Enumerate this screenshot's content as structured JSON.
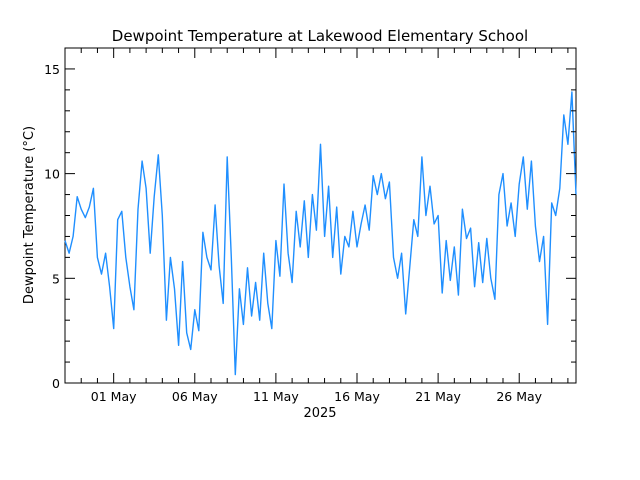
{
  "chart_data": {
    "type": "line",
    "title": "Dewpoint Temperature at Lakewood Elementary School",
    "ylabel": "Dewpoint Temperature (°C)",
    "xlabel": "2025",
    "ylim": [
      0,
      16
    ],
    "y_ticks": [
      0,
      5,
      10,
      15
    ],
    "y_minor_step": 1,
    "xlim": [
      "2025-04-28",
      "2025-05-29T12:00"
    ],
    "x_ticks": [
      {
        "date": "2025-05-01",
        "label": "01 May"
      },
      {
        "date": "2025-05-06",
        "label": "06 May"
      },
      {
        "date": "2025-05-11",
        "label": "11 May"
      },
      {
        "date": "2025-05-16",
        "label": "16 May"
      },
      {
        "date": "2025-05-21",
        "label": "21 May"
      },
      {
        "date": "2025-05-26",
        "label": "26 May"
      }
    ],
    "grid": false,
    "series": [
      {
        "color": "#1f8fff",
        "points": [
          [
            "2025-04-28T00:00",
            6.8
          ],
          [
            "2025-04-28T06:00",
            6.2
          ],
          [
            "2025-04-28T12:00",
            7.0
          ],
          [
            "2025-04-28T18:00",
            8.9
          ],
          [
            "2025-04-29T00:00",
            8.3
          ],
          [
            "2025-04-29T06:00",
            7.9
          ],
          [
            "2025-04-29T12:00",
            8.4
          ],
          [
            "2025-04-29T18:00",
            9.3
          ],
          [
            "2025-04-30T00:00",
            6.0
          ],
          [
            "2025-04-30T06:00",
            5.2
          ],
          [
            "2025-04-30T12:00",
            6.2
          ],
          [
            "2025-04-30T18:00",
            4.6
          ],
          [
            "2025-05-01T00:00",
            2.6
          ],
          [
            "2025-05-01T06:00",
            7.8
          ],
          [
            "2025-05-01T12:00",
            8.2
          ],
          [
            "2025-05-01T18:00",
            6.0
          ],
          [
            "2025-05-02T00:00",
            4.6
          ],
          [
            "2025-05-02T06:00",
            3.5
          ],
          [
            "2025-05-02T12:00",
            8.3
          ],
          [
            "2025-05-02T18:00",
            10.6
          ],
          [
            "2025-05-03T00:00",
            9.3
          ],
          [
            "2025-05-03T06:00",
            6.2
          ],
          [
            "2025-05-03T12:00",
            8.9
          ],
          [
            "2025-05-03T18:00",
            10.9
          ],
          [
            "2025-05-04T00:00",
            8.0
          ],
          [
            "2025-05-04T06:00",
            3.0
          ],
          [
            "2025-05-04T12:00",
            6.0
          ],
          [
            "2025-05-04T18:00",
            4.5
          ],
          [
            "2025-05-05T00:00",
            1.8
          ],
          [
            "2025-05-05T06:00",
            5.8
          ],
          [
            "2025-05-05T12:00",
            2.4
          ],
          [
            "2025-05-05T18:00",
            1.6
          ],
          [
            "2025-05-06T00:00",
            3.5
          ],
          [
            "2025-05-06T06:00",
            2.5
          ],
          [
            "2025-05-06T12:00",
            7.2
          ],
          [
            "2025-05-06T18:00",
            6.0
          ],
          [
            "2025-05-07T00:00",
            5.4
          ],
          [
            "2025-05-07T06:00",
            8.5
          ],
          [
            "2025-05-07T12:00",
            5.6
          ],
          [
            "2025-05-07T18:00",
            3.8
          ],
          [
            "2025-05-08T00:00",
            10.8
          ],
          [
            "2025-05-08T06:00",
            6.0
          ],
          [
            "2025-05-08T12:00",
            0.4
          ],
          [
            "2025-05-08T18:00",
            4.5
          ],
          [
            "2025-05-09T00:00",
            2.8
          ],
          [
            "2025-05-09T06:00",
            5.5
          ],
          [
            "2025-05-09T12:00",
            3.2
          ],
          [
            "2025-05-09T18:00",
            4.8
          ],
          [
            "2025-05-10T00:00",
            3.0
          ],
          [
            "2025-05-10T06:00",
            6.2
          ],
          [
            "2025-05-10T12:00",
            3.8
          ],
          [
            "2025-05-10T18:00",
            2.6
          ],
          [
            "2025-05-11T00:00",
            6.8
          ],
          [
            "2025-05-11T06:00",
            5.1
          ],
          [
            "2025-05-11T12:00",
            9.5
          ],
          [
            "2025-05-11T18:00",
            6.2
          ],
          [
            "2025-05-12T00:00",
            4.8
          ],
          [
            "2025-05-12T06:00",
            8.2
          ],
          [
            "2025-05-12T12:00",
            6.5
          ],
          [
            "2025-05-12T18:00",
            8.7
          ],
          [
            "2025-05-13T00:00",
            6.0
          ],
          [
            "2025-05-13T06:00",
            9.0
          ],
          [
            "2025-05-13T12:00",
            7.3
          ],
          [
            "2025-05-13T18:00",
            11.4
          ],
          [
            "2025-05-14T00:00",
            7.0
          ],
          [
            "2025-05-14T06:00",
            9.4
          ],
          [
            "2025-05-14T12:00",
            6.0
          ],
          [
            "2025-05-14T18:00",
            8.4
          ],
          [
            "2025-05-15T00:00",
            5.2
          ],
          [
            "2025-05-15T06:00",
            7.0
          ],
          [
            "2025-05-15T12:00",
            6.5
          ],
          [
            "2025-05-15T18:00",
            8.2
          ],
          [
            "2025-05-16T00:00",
            6.5
          ],
          [
            "2025-05-16T06:00",
            7.6
          ],
          [
            "2025-05-16T12:00",
            8.5
          ],
          [
            "2025-05-16T18:00",
            7.3
          ],
          [
            "2025-05-17T00:00",
            9.9
          ],
          [
            "2025-05-17T06:00",
            9.0
          ],
          [
            "2025-05-17T12:00",
            10.0
          ],
          [
            "2025-05-17T18:00",
            8.8
          ],
          [
            "2025-05-18T00:00",
            9.6
          ],
          [
            "2025-05-18T06:00",
            6.0
          ],
          [
            "2025-05-18T12:00",
            5.0
          ],
          [
            "2025-05-18T18:00",
            6.2
          ],
          [
            "2025-05-19T00:00",
            3.3
          ],
          [
            "2025-05-19T06:00",
            5.5
          ],
          [
            "2025-05-19T12:00",
            7.8
          ],
          [
            "2025-05-19T18:00",
            7.0
          ],
          [
            "2025-05-20T00:00",
            10.8
          ],
          [
            "2025-05-20T06:00",
            8.0
          ],
          [
            "2025-05-20T12:00",
            9.4
          ],
          [
            "2025-05-20T18:00",
            7.6
          ],
          [
            "2025-05-21T00:00",
            8.0
          ],
          [
            "2025-05-21T06:00",
            4.3
          ],
          [
            "2025-05-21T12:00",
            6.8
          ],
          [
            "2025-05-21T18:00",
            4.9
          ],
          [
            "2025-05-22T00:00",
            6.5
          ],
          [
            "2025-05-22T06:00",
            4.2
          ],
          [
            "2025-05-22T12:00",
            8.3
          ],
          [
            "2025-05-22T18:00",
            6.9
          ],
          [
            "2025-05-23T00:00",
            7.4
          ],
          [
            "2025-05-23T06:00",
            4.6
          ],
          [
            "2025-05-23T12:00",
            6.7
          ],
          [
            "2025-05-23T18:00",
            4.8
          ],
          [
            "2025-05-24T00:00",
            6.9
          ],
          [
            "2025-05-24T06:00",
            5.0
          ],
          [
            "2025-05-24T12:00",
            4.0
          ],
          [
            "2025-05-24T18:00",
            9.0
          ],
          [
            "2025-05-25T00:00",
            10.0
          ],
          [
            "2025-05-25T06:00",
            7.5
          ],
          [
            "2025-05-25T12:00",
            8.6
          ],
          [
            "2025-05-25T18:00",
            7.0
          ],
          [
            "2025-05-26T00:00",
            9.5
          ],
          [
            "2025-05-26T06:00",
            10.8
          ],
          [
            "2025-05-26T12:00",
            8.3
          ],
          [
            "2025-05-26T18:00",
            10.6
          ],
          [
            "2025-05-27T00:00",
            7.5
          ],
          [
            "2025-05-27T06:00",
            5.8
          ],
          [
            "2025-05-27T12:00",
            7.0
          ],
          [
            "2025-05-27T18:00",
            2.8
          ],
          [
            "2025-05-28T00:00",
            8.6
          ],
          [
            "2025-05-28T06:00",
            8.0
          ],
          [
            "2025-05-28T12:00",
            9.3
          ],
          [
            "2025-05-28T18:00",
            12.8
          ],
          [
            "2025-05-29T00:00",
            11.4
          ],
          [
            "2025-05-29T06:00",
            13.9
          ],
          [
            "2025-05-29T12:00",
            9.0
          ]
        ]
      }
    ]
  }
}
